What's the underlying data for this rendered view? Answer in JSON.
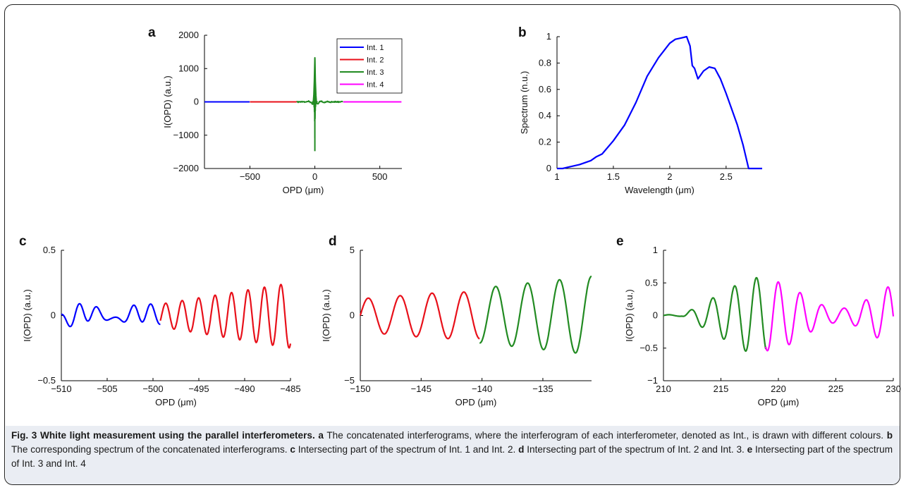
{
  "colors": {
    "int1": "#0000ff",
    "int2": "#e8101a",
    "int3": "#228b22",
    "int4": "#ff00ff"
  },
  "legend": [
    "Int. 1",
    "Int. 2",
    "Int. 3",
    "Int. 4"
  ],
  "chart_data": [
    {
      "panel": "a",
      "type": "line",
      "xlabel": "OPD (μm)",
      "ylabel": "I(OPD) (a.u.)",
      "xlim": [
        -850,
        670
      ],
      "ylim": [
        -2000,
        2000
      ],
      "xticks": [
        -500,
        0,
        500
      ],
      "xtick_labels": [
        "−500",
        "0",
        "500"
      ],
      "yticks": [
        -2000,
        -1000,
        0,
        1000,
        2000
      ],
      "ytick_labels": [
        "−2000",
        "−1000",
        "0",
        "1000",
        "2000"
      ],
      "legend_position": "top-right",
      "series": [
        {
          "name": "Int. 1",
          "x_range": [
            -850,
            -500
          ]
        },
        {
          "name": "Int. 2",
          "x_range": [
            -500,
            -140
          ]
        },
        {
          "name": "Int. 3",
          "x_range": [
            -140,
            219
          ],
          "peak_max": 1300,
          "peak_min": -1480
        },
        {
          "name": "Int. 4",
          "x_range": [
            219,
            670
          ]
        }
      ]
    },
    {
      "panel": "b",
      "type": "line",
      "xlabel": "Wavelength (μm)",
      "ylabel": "Spectrum (n.u.)",
      "xlim": [
        1,
        2.82
      ],
      "ylim": [
        0,
        1
      ],
      "xticks": [
        1,
        1.5,
        2,
        2.5
      ],
      "xtick_labels": [
        "1",
        "1.5",
        "2",
        "2.5"
      ],
      "yticks": [
        0,
        0.2,
        0.4,
        0.6,
        0.8,
        1
      ],
      "ytick_labels": [
        "0",
        "0.2",
        "0.4",
        "0.6",
        "0.8",
        "1"
      ],
      "series": [
        {
          "x": [
            1.0,
            1.05,
            1.1,
            1.2,
            1.3,
            1.35,
            1.4,
            1.5,
            1.6,
            1.7,
            1.8,
            1.9,
            2.0,
            2.05,
            2.1,
            2.15,
            2.18,
            2.2,
            2.22,
            2.25,
            2.3,
            2.35,
            2.4,
            2.45,
            2.5,
            2.55,
            2.6,
            2.65,
            2.7,
            2.72,
            2.82
          ],
          "y": [
            0.0,
            0.0,
            0.01,
            0.03,
            0.06,
            0.09,
            0.11,
            0.21,
            0.33,
            0.5,
            0.7,
            0.84,
            0.95,
            0.98,
            0.99,
            1.0,
            0.93,
            0.78,
            0.76,
            0.68,
            0.74,
            0.77,
            0.76,
            0.68,
            0.57,
            0.45,
            0.33,
            0.18,
            0.0,
            0.0,
            0.0
          ]
        }
      ]
    },
    {
      "panel": "c",
      "type": "line",
      "xlabel": "OPD (μm)",
      "ylabel": "I(OPD) (a.u.)",
      "xlim": [
        -510,
        -485
      ],
      "ylim": [
        -0.5,
        0.5
      ],
      "xticks": [
        -510,
        -505,
        -500,
        -495,
        -490,
        -485
      ],
      "xtick_labels": [
        "−510",
        "−505",
        "−500",
        "−495",
        "−490",
        "−485"
      ],
      "yticks": [
        -0.5,
        0,
        0.5
      ],
      "ytick_labels": [
        "−0.5",
        "0",
        "0.5"
      ],
      "series": [
        {
          "name": "Int. 1",
          "x_range": [
            -510,
            -499.2
          ],
          "amplitude": 0.08
        },
        {
          "name": "Int. 2",
          "x_range": [
            -499.2,
            -485
          ],
          "amplitude": 0.25
        }
      ]
    },
    {
      "panel": "d",
      "type": "line",
      "xlabel": "OPD (μm)",
      "ylabel": "I(OPD) (a.u.)",
      "xlim": [
        -150,
        -131
      ],
      "ylim": [
        -5,
        5
      ],
      "xticks": [
        -150,
        -145,
        -140,
        -135
      ],
      "xtick_labels": [
        "−150",
        "−145",
        "−140",
        "−135"
      ],
      "yticks": [
        -5,
        0,
        5
      ],
      "ytick_labels": [
        "−5",
        "0",
        "5"
      ],
      "series": [
        {
          "name": "Int. 2",
          "x_range": [
            -150,
            -140.2
          ],
          "amplitude": 1.8
        },
        {
          "name": "Int. 3",
          "x_range": [
            -140.2,
            -131
          ],
          "amplitude": 3.0
        }
      ]
    },
    {
      "panel": "e",
      "type": "line",
      "xlabel": "OPD (μm)",
      "ylabel": "I(OPD) (a.u.)",
      "xlim": [
        210,
        230
      ],
      "ylim": [
        -1,
        1
      ],
      "xticks": [
        210,
        215,
        220,
        225,
        230
      ],
      "xtick_labels": [
        "210",
        "215",
        "220",
        "225",
        "230"
      ],
      "yticks": [
        -1,
        -0.5,
        0,
        0.5,
        1
      ],
      "ytick_labels": [
        "−1",
        "−0.5",
        "0",
        "0.5",
        "1"
      ],
      "series": [
        {
          "name": "Int. 3",
          "x_range": [
            210,
            218.9
          ],
          "amplitude": 0.58
        },
        {
          "name": "Int. 4",
          "x_range": [
            218.9,
            230
          ],
          "amplitude": 0.54
        }
      ]
    }
  ],
  "caption": {
    "fig_label": "Fig. 3",
    "title": "White light measurement using the parallel interferometers.",
    "parts": [
      {
        "label": "a",
        "text": "The concatenated interferograms, where the interferogram of each interferometer, denoted as Int., is drawn with different colours."
      },
      {
        "label": "b",
        "text": "The corresponding spectrum of the concatenated interferograms."
      },
      {
        "label": "c",
        "text": "Intersecting part of the spectrum of Int. 1 and Int. 2."
      },
      {
        "label": "d",
        "text": "Intersecting part of the spectrum of Int. 2 and Int. 3."
      },
      {
        "label": "e",
        "text": "Intersecting part of the spectrum of Int. 3 and Int. 4"
      }
    ]
  }
}
